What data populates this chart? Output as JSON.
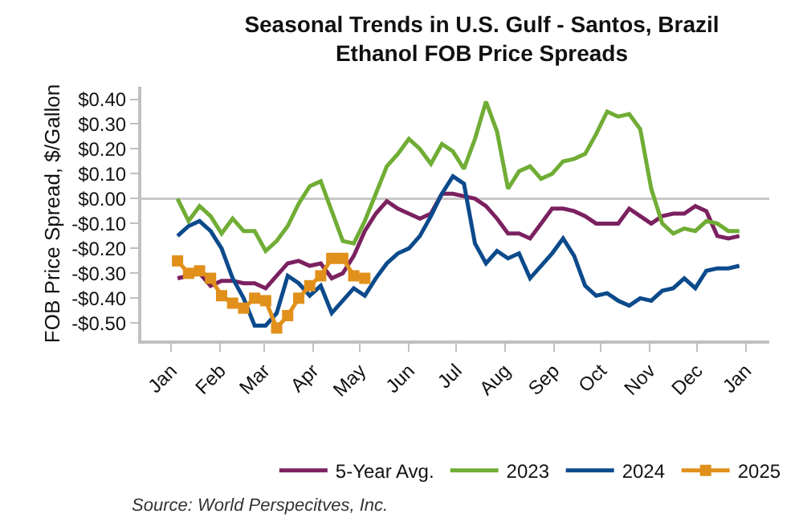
{
  "chart_data": {
    "type": "line",
    "title": "Seasonal Trends in U.S. Gulf - Santos, Brazil\nEthanol FOB Price Spreads",
    "ylabel": "FOB Price Spread, $/Gallon",
    "xlim": [
      "2000-12-13",
      "2002-01-16"
    ],
    "xticks": [
      {
        "value": "--01-01",
        "label": "Jan"
      },
      {
        "value": "--02-01",
        "label": "Feb"
      },
      {
        "value": "--03-01",
        "label": "Mar"
      },
      {
        "value": "--04-01",
        "label": "Apr"
      },
      {
        "value": "--05-01",
        "label": "May"
      },
      {
        "value": "--06-01",
        "label": "Jun"
      },
      {
        "value": "--07-01",
        "label": "Jul"
      },
      {
        "value": "--08-01",
        "label": "Aug"
      },
      {
        "value": "--09-01",
        "label": "Sep"
      },
      {
        "value": "--10-01",
        "label": "Oct"
      },
      {
        "value": "--11-01",
        "label": "Nov"
      },
      {
        "value": "--12-01",
        "label": "Dec"
      },
      {
        "value": "2002-01-01",
        "label": "Jan"
      }
    ],
    "ylim": [
      -0.57,
      0.45
    ],
    "yticks": [
      {
        "value": 0.4,
        "label": "$0.40"
      },
      {
        "value": 0.3,
        "label": "$0.30"
      },
      {
        "value": 0.2,
        "label": "$0.20"
      },
      {
        "value": 0.1,
        "label": "$0.10"
      },
      {
        "value": 0,
        "label": "$0.00"
      },
      {
        "value": -0.1,
        "label": "-$0.10"
      },
      {
        "value": -0.2,
        "label": "-$0.20"
      },
      {
        "value": -0.3,
        "label": "-$0.30"
      },
      {
        "value": -0.4,
        "label": "-$0.40"
      },
      {
        "value": -0.5,
        "label": "-$0.50"
      }
    ],
    "x": [
      "--01-05",
      "--01-12",
      "--01-19",
      "--01-26",
      "--02-02",
      "--02-09",
      "--02-16",
      "--02-23",
      "--03-02",
      "--03-09",
      "--03-16",
      "--03-23",
      "--03-30",
      "--04-06",
      "--04-13",
      "--04-20",
      "--04-27",
      "--05-04",
      "--05-11",
      "--05-18",
      "--05-25",
      "--06-01",
      "--06-08",
      "--06-15",
      "--06-22",
      "--06-29",
      "--07-06",
      "--07-13",
      "--07-20",
      "--07-27",
      "--08-03",
      "--08-10",
      "--08-17",
      "--08-24",
      "--08-31",
      "--09-07",
      "--09-14",
      "--09-21",
      "--09-28",
      "--10-05",
      "--10-12",
      "--10-19",
      "--10-26",
      "--11-02",
      "--11-09",
      "--11-16",
      "--11-23",
      "--11-30",
      "--12-07",
      "--12-14",
      "--12-21",
      "--12-28"
    ],
    "series": [
      {
        "name": "5-Year Avg.",
        "color": "#7b2160",
        "values": [
          -0.32,
          -0.31,
          -0.3,
          -0.35,
          -0.33,
          -0.33,
          -0.34,
          -0.34,
          -0.36,
          -0.31,
          -0.26,
          -0.25,
          -0.27,
          -0.26,
          -0.32,
          -0.3,
          -0.23,
          -0.13,
          -0.06,
          -0.01,
          -0.04,
          -0.06,
          -0.08,
          -0.06,
          0.02,
          0.02,
          0.01,
          0.0,
          -0.03,
          -0.08,
          -0.14,
          -0.14,
          -0.16,
          -0.1,
          -0.04,
          -0.04,
          -0.05,
          -0.07,
          -0.1,
          -0.1,
          -0.1,
          -0.04,
          -0.07,
          -0.1,
          -0.07,
          -0.06,
          -0.06,
          -0.03,
          -0.05,
          -0.15,
          -0.16,
          -0.15
        ]
      },
      {
        "name": "2023",
        "color": "#70ad35",
        "values": [
          0.0,
          -0.09,
          -0.03,
          -0.07,
          -0.14,
          -0.08,
          -0.13,
          -0.13,
          -0.21,
          -0.17,
          -0.11,
          -0.02,
          0.05,
          0.07,
          -0.05,
          -0.17,
          -0.18,
          -0.09,
          0.02,
          0.13,
          0.18,
          0.24,
          0.2,
          0.14,
          0.22,
          0.19,
          0.12,
          0.24,
          0.39,
          0.27,
          0.04,
          0.11,
          0.13,
          0.08,
          0.1,
          0.15,
          0.16,
          0.18,
          0.26,
          0.35,
          0.33,
          0.34,
          0.28,
          0.04,
          -0.1,
          -0.14,
          -0.12,
          -0.13,
          -0.09,
          -0.1,
          -0.13,
          -0.13
        ]
      },
      {
        "name": "2024",
        "color": "#0b4a8b",
        "values": [
          -0.15,
          -0.11,
          -0.09,
          -0.13,
          -0.2,
          -0.32,
          -0.4,
          -0.51,
          -0.51,
          -0.46,
          -0.31,
          -0.34,
          -0.39,
          -0.35,
          -0.46,
          -0.41,
          -0.36,
          -0.39,
          -0.32,
          -0.26,
          -0.22,
          -0.2,
          -0.15,
          -0.07,
          0.02,
          0.09,
          0.06,
          -0.18,
          -0.26,
          -0.21,
          -0.24,
          -0.22,
          -0.32,
          -0.27,
          -0.22,
          -0.16,
          -0.23,
          -0.35,
          -0.39,
          -0.38,
          -0.41,
          -0.43,
          -0.4,
          -0.41,
          -0.37,
          -0.36,
          -0.32,
          -0.36,
          -0.29,
          -0.28,
          -0.28,
          -0.27
        ]
      },
      {
        "name": "2025",
        "color": "#e0901b",
        "marker": "square",
        "values": [
          -0.25,
          -0.3,
          -0.29,
          -0.32,
          -0.39,
          -0.42,
          -0.44,
          -0.4,
          -0.41,
          -0.52,
          -0.47,
          -0.4,
          -0.35,
          -0.31,
          -0.24,
          -0.24,
          -0.31,
          -0.32,
          null,
          null,
          null,
          null,
          null,
          null,
          null,
          null,
          null,
          null,
          null,
          null,
          null,
          null,
          null,
          null,
          null,
          null,
          null,
          null,
          null,
          null,
          null,
          null,
          null,
          null,
          null,
          null,
          null,
          null,
          null,
          null,
          null,
          null
        ]
      }
    ],
    "ref_lines": [
      {
        "axis": "y",
        "value": 0,
        "color": "#c8c8c8"
      }
    ],
    "grid": false,
    "legend": "bottom",
    "annotations": [
      "Source: World Perspecitves, Inc."
    ]
  }
}
